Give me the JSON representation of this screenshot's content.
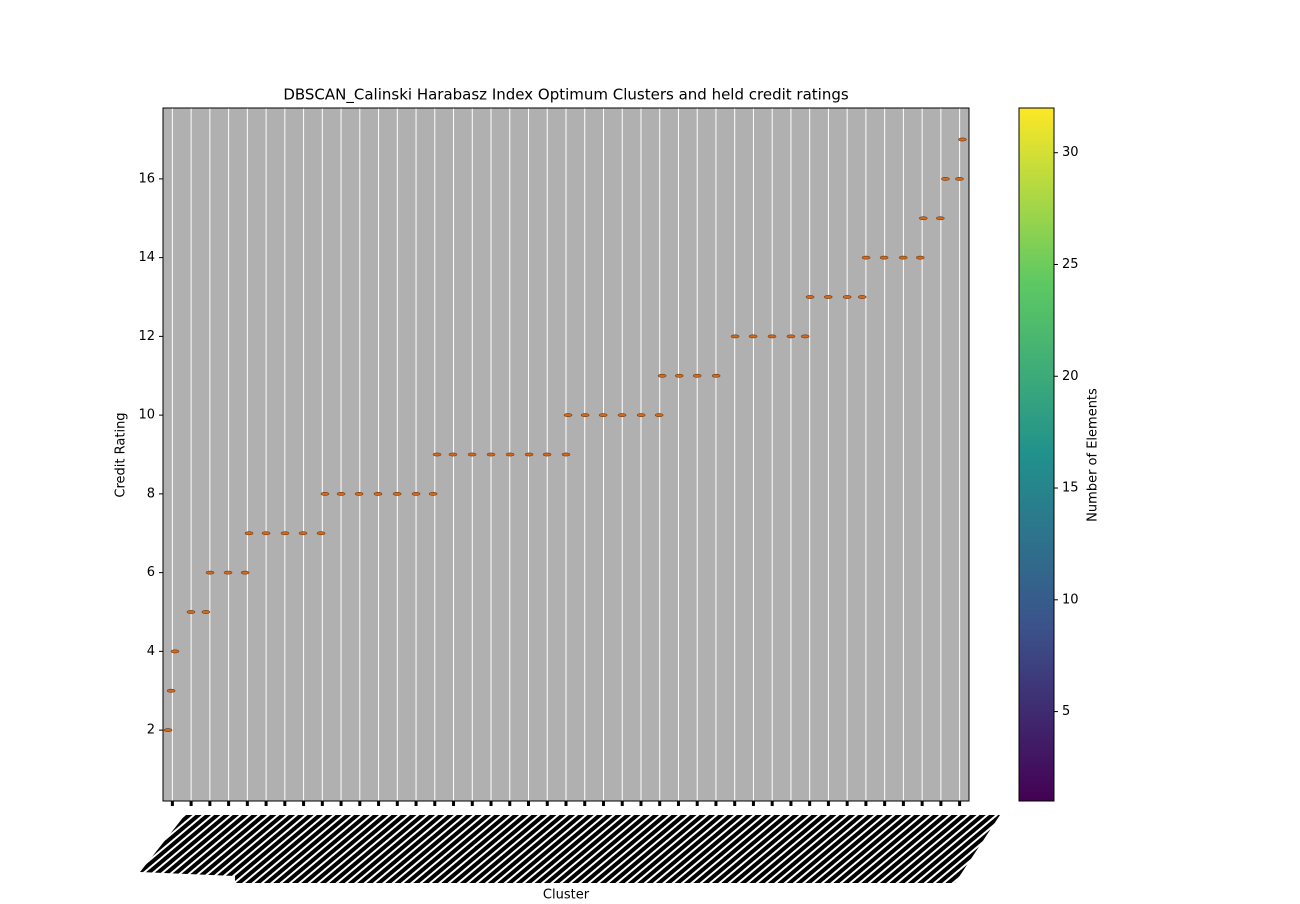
{
  "chart_data": {
    "type": "scatter",
    "title": "DBSCAN_Calinski Harabasz Index Optimum Clusters and held credit ratings",
    "xlabel": "Cluster",
    "ylabel": "Credit Rating",
    "x": [
      -0.23,
      -0.07,
      0.14,
      0.99,
      1.79,
      2.01,
      2.97,
      3.88,
      4.09,
      5.0,
      6.01,
      6.97,
      7.93,
      8.14,
      9.0,
      9.96,
      10.97,
      11.99,
      13.0,
      13.91,
      14.12,
      14.97,
      15.99,
      17.0,
      18.02,
      19.03,
      19.99,
      21.0,
      21.11,
      22.02,
      22.98,
      23.99,
      25.01,
      25.97,
      26.13,
      27.04,
      28.0,
      29.01,
      30.02,
      30.98,
      31.99,
      33.0,
      33.76,
      34.02,
      34.99,
      36.0,
      36.8,
      37.01,
      37.97,
      38.99,
      39.9,
      40.06,
      40.97,
      41.24,
      41.99,
      42.15
    ],
    "values": [
      2,
      3,
      4,
      5,
      5,
      6,
      6,
      6,
      7,
      7,
      7,
      7,
      7,
      8,
      8,
      8,
      8,
      8,
      8,
      8,
      9,
      9,
      9,
      9,
      9,
      9,
      9,
      9,
      10,
      10,
      10,
      10,
      10,
      10,
      11,
      11,
      11,
      11,
      12,
      12,
      12,
      12,
      12,
      13,
      13,
      13,
      13,
      14,
      14,
      14,
      14,
      15,
      15,
      16,
      16,
      17
    ],
    "color": "#d2691e",
    "xlim": [
      -0.5,
      42.5
    ],
    "xticks": [
      0,
      1,
      2,
      3,
      4,
      5,
      6,
      7,
      8,
      9,
      10,
      11,
      12,
      13,
      14,
      15,
      16,
      17,
      18,
      19,
      20,
      21,
      22,
      23,
      24,
      25,
      26,
      27,
      28,
      29,
      30,
      31,
      32,
      33,
      34,
      35,
      36,
      37,
      38,
      39,
      40,
      41,
      42
    ],
    "ylim": [
      0.2,
      17.8
    ],
    "yticks": [
      2,
      4,
      6,
      8,
      10,
      12,
      14,
      16
    ],
    "grid": "x",
    "background": "#b0b0b0",
    "colorbar": {
      "label": "Number of Elements",
      "lim": [
        1,
        32
      ],
      "ticks": [
        5,
        10,
        15,
        20,
        25,
        30
      ],
      "colormap": [
        "#440154",
        "#3b528b",
        "#21918c",
        "#5ec962",
        "#fde725"
      ]
    }
  }
}
